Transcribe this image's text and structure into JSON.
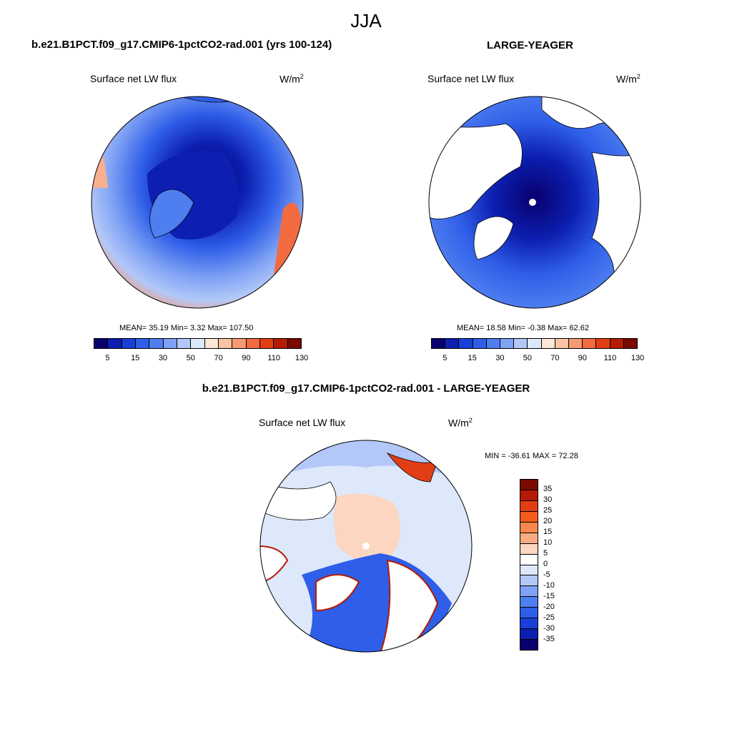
{
  "main_title": "JJA",
  "panels": {
    "model": {
      "title": "b.e21.B1PCT.f09_g17.CMIP6-1pctCO2-rad.001 (yrs 100-124)",
      "variable": "Surface net LW flux",
      "units": "W/m",
      "units_exp": "2",
      "stats": "MEAN=  35.19  Min=   3.32  Max= 107.50"
    },
    "obs": {
      "title": "LARGE-YEAGER",
      "variable": "Surface net LW flux",
      "units": "W/m",
      "units_exp": "2",
      "stats": "MEAN=  18.58  Min=  -0.38  Max=  62.62"
    },
    "diff": {
      "title": "b.e21.B1PCT.f09_g17.CMIP6-1pctCO2-rad.001 - LARGE-YEAGER",
      "variable": "Surface net LW flux",
      "units": "W/m",
      "units_exp": "2",
      "stats": "MIN = -36.61 MAX =  72.28"
    }
  },
  "colorbar_abs": {
    "colors": [
      "#08006e",
      "#0c1fb0",
      "#1a3fd8",
      "#2f5ee8",
      "#4f7ef0",
      "#7fa2f4",
      "#b3c8f8",
      "#dde8fb",
      "#fde6d6",
      "#fbc3a6",
      "#f89a74",
      "#f26b40",
      "#e23e15",
      "#b51a05",
      "#7a0a00"
    ],
    "ticks": [
      "5",
      "15",
      "30",
      "50",
      "70",
      "90",
      "110",
      "130"
    ]
  },
  "colorbar_diff": {
    "colors": [
      "#7a0a00",
      "#b51a05",
      "#e23e15",
      "#f55a1e",
      "#f7884e",
      "#f9ac84",
      "#fcd6c0",
      "#ffffff",
      "#dde8fb",
      "#b3c8f8",
      "#7fa2f4",
      "#4f7ef0",
      "#2f5ee8",
      "#1a3fd8",
      "#0c1fb0",
      "#08006e"
    ],
    "ticks": [
      "35",
      "30",
      "25",
      "20",
      "15",
      "10",
      "5",
      "0",
      "-5",
      "-10",
      "-15",
      "-20",
      "-25",
      "-30",
      "-35"
    ]
  }
}
